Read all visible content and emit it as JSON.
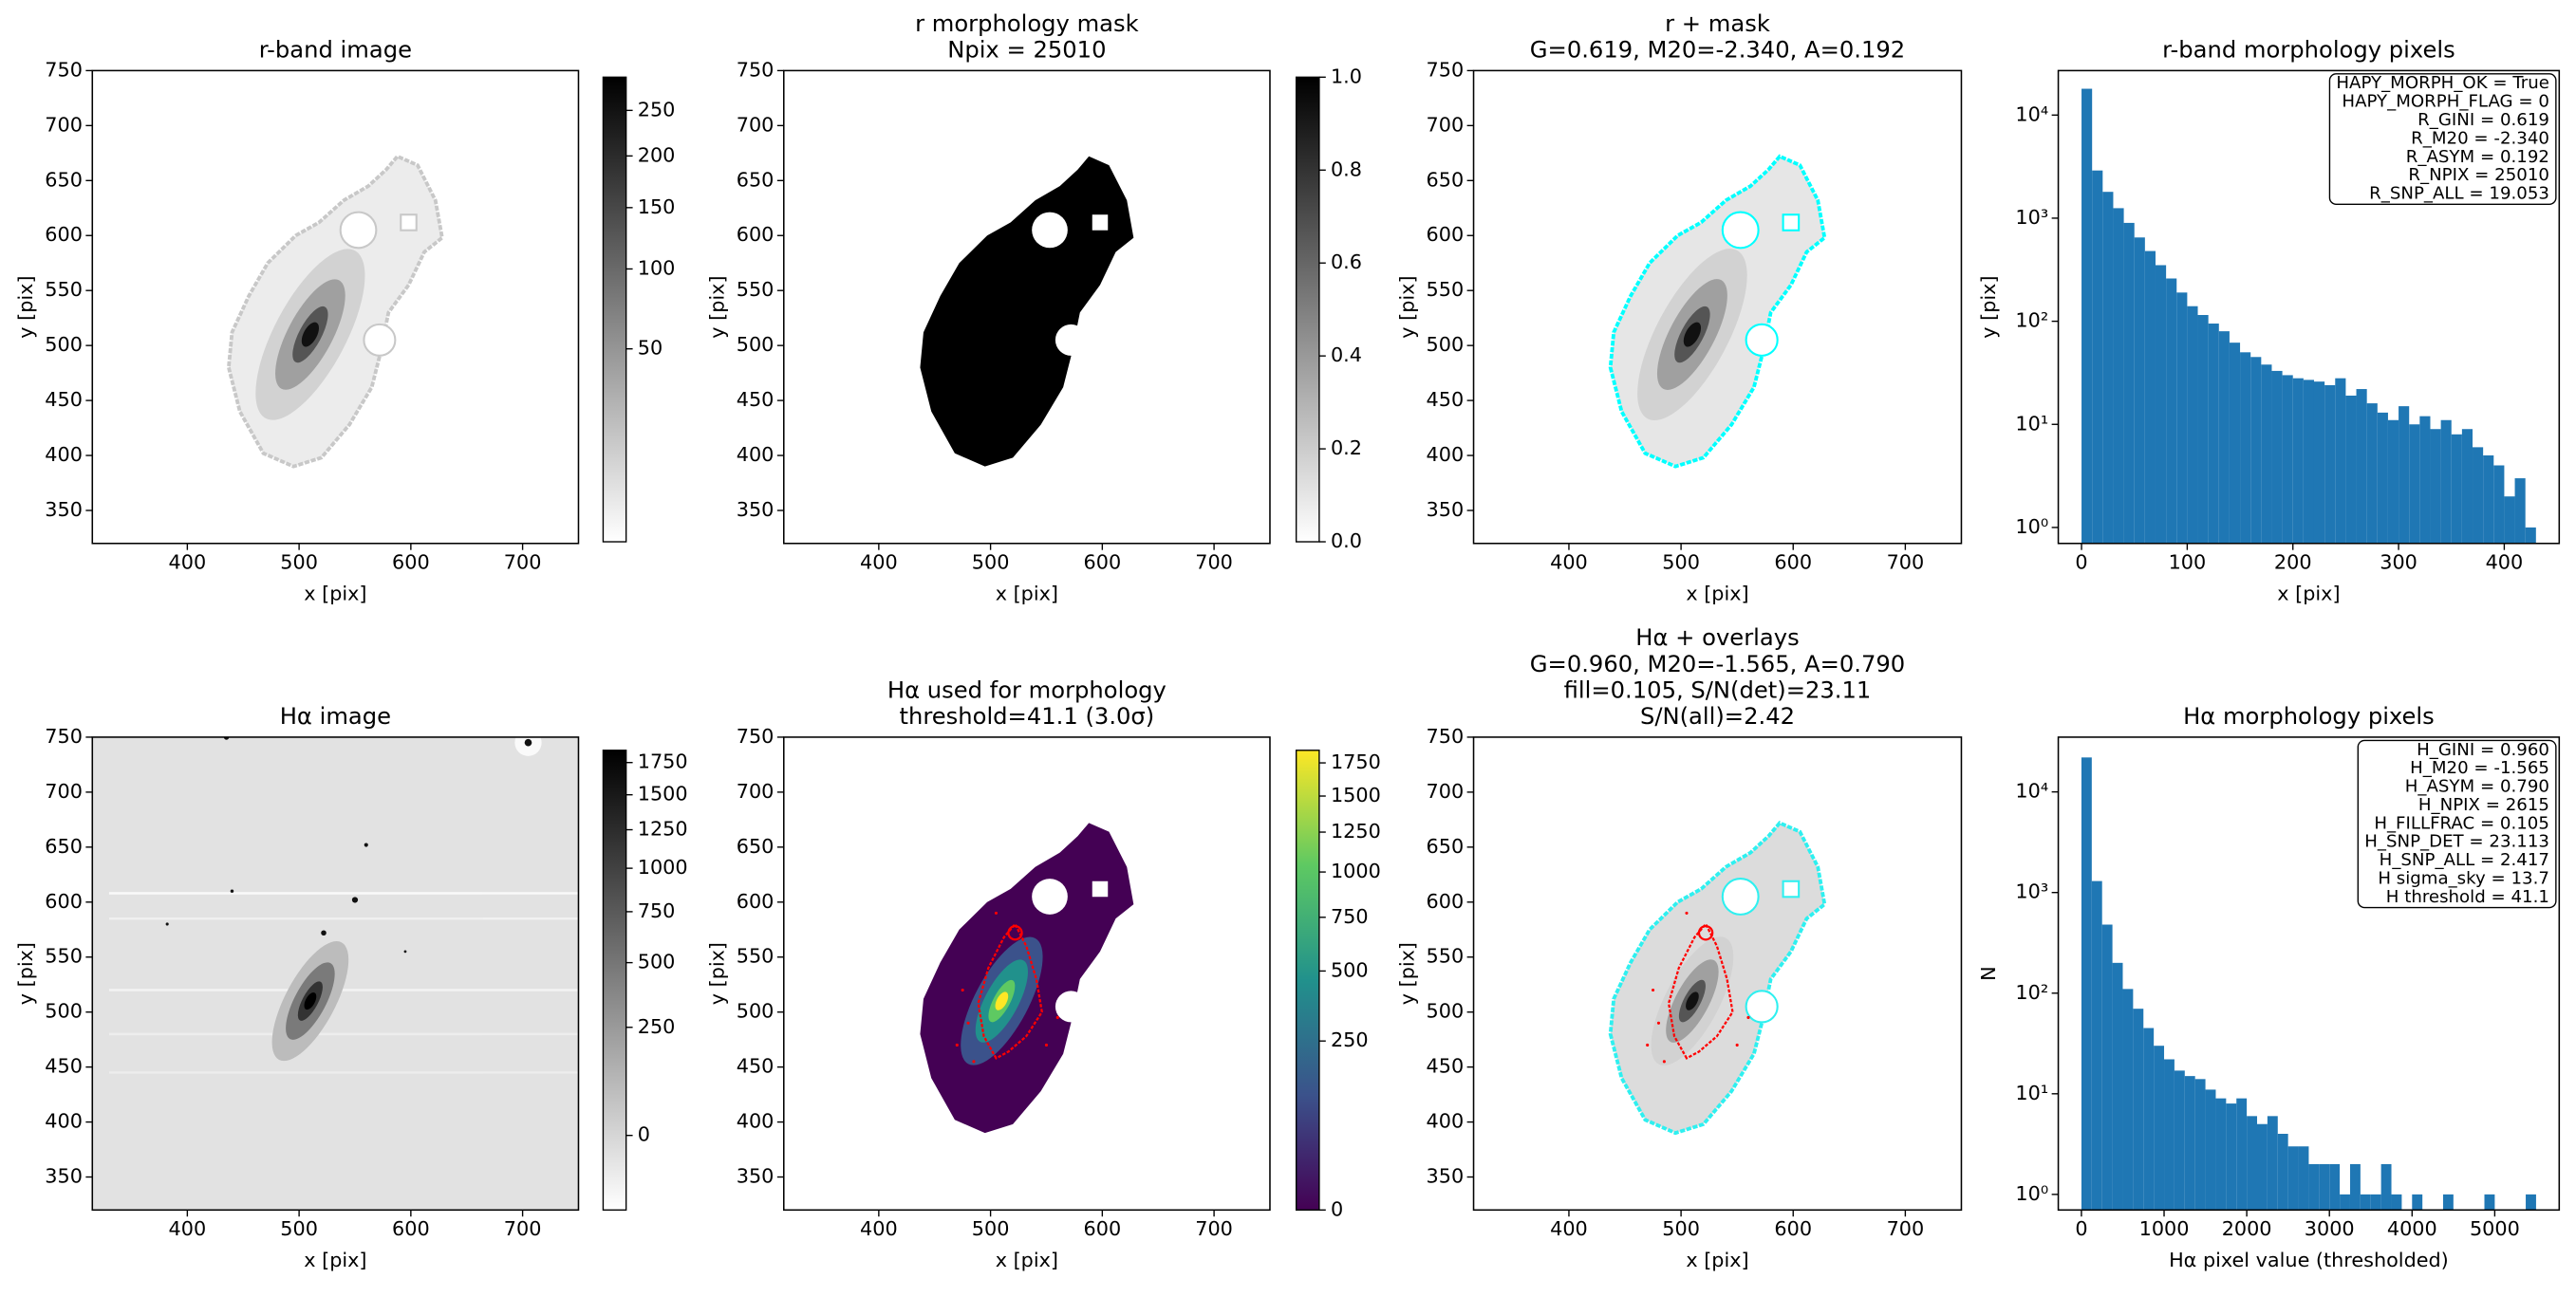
{
  "chart_data": [
    {
      "type": "image",
      "title": [
        "r-band image"
      ],
      "xlabel": "x [pix]",
      "ylabel": "y [pix]",
      "xlim": [
        315,
        750
      ],
      "ylim": [
        320,
        750
      ],
      "xticks": [
        400,
        500,
        600,
        700
      ],
      "yticks": [
        350,
        400,
        450,
        500,
        550,
        600,
        650,
        700,
        750
      ],
      "colorbar": {
        "lim": [
          0,
          290
        ],
        "ticks": [
          50,
          100,
          150,
          200,
          250
        ],
        "stretch": "sqrt",
        "cmap": "gray_r"
      }
    },
    {
      "type": "image",
      "title": [
        "r morphology mask",
        "Npix = 25010"
      ],
      "xlabel": "x [pix]",
      "ylabel": "y [pix]",
      "xlim": [
        315,
        750
      ],
      "ylim": [
        320,
        750
      ],
      "xticks": [
        400,
        500,
        600,
        700
      ],
      "yticks": [
        350,
        400,
        450,
        500,
        550,
        600,
        650,
        700,
        750
      ],
      "colorbar": {
        "lim": [
          0,
          1
        ],
        "ticks": [
          {
            "value": 0,
            "label": "0.0"
          },
          0.2,
          0.4,
          0.6,
          0.8,
          {
            "value": 1,
            "label": "1.0"
          }
        ],
        "stretch": "linear",
        "cmap": "gray_r"
      }
    },
    {
      "type": "image",
      "title": [
        "r + mask",
        "G=0.619, M20=-2.340, A=0.192"
      ],
      "xlabel": "x [pix]",
      "ylabel": "y [pix]",
      "xlim": [
        315,
        750
      ],
      "ylim": [
        320,
        750
      ],
      "xticks": [
        400,
        500,
        600,
        700
      ],
      "yticks": [
        350,
        400,
        450,
        500,
        550,
        600,
        650,
        700,
        750
      ]
    },
    {
      "type": "histogram",
      "title": [
        "r-band morphology pixels"
      ],
      "xlabel": "x [pix]",
      "ylabel": "y [pix]",
      "color": "#1f77b4",
      "ylog": true,
      "bins": [
        0,
        10,
        20,
        30,
        40,
        50,
        60,
        70,
        80,
        90,
        100,
        110,
        120,
        130,
        140,
        150,
        160,
        170,
        180,
        190,
        200,
        210,
        220,
        230,
        240,
        250,
        260,
        270,
        280,
        290,
        300,
        310,
        320,
        330,
        340,
        350,
        360,
        370,
        380,
        390,
        400,
        410,
        420,
        430
      ],
      "values": [
        18000,
        2900,
        1800,
        1250,
        900,
        650,
        480,
        350,
        260,
        190,
        140,
        115,
        95,
        80,
        62,
        50,
        45,
        38,
        33,
        30,
        28,
        27,
        26,
        24,
        28,
        19,
        22,
        16,
        13,
        11,
        15,
        10,
        12,
        9,
        11,
        8,
        9,
        6,
        5,
        4,
        2,
        3,
        1
      ],
      "xlim": [
        -22,
        452
      ],
      "ylim": [
        0.7,
        27000
      ],
      "xticks": [
        0,
        100,
        200,
        300,
        400
      ],
      "yticks": [
        {
          "value": 1,
          "label": "10⁰"
        },
        {
          "value": 10,
          "label": "10¹"
        },
        {
          "value": 100,
          "label": "10²"
        },
        {
          "value": 1000,
          "label": "10³"
        },
        {
          "value": 10000,
          "label": "10⁴"
        }
      ],
      "annotation": [
        "HAPY_MORPH_OK = True",
        "HAPY_MORPH_FLAG = 0",
        "R_GINI = 0.619",
        "R_M20 = -2.340",
        "R_ASYM = 0.192",
        "R_NPIX = 25010",
        "R_SNP_ALL = 19.053"
      ]
    },
    {
      "type": "image",
      "title": [
        "Hα image"
      ],
      "xlabel": "x [pix]",
      "ylabel": "y [pix]",
      "xlim": [
        315,
        750
      ],
      "ylim": [
        320,
        750
      ],
      "xticks": [
        400,
        500,
        600,
        700
      ],
      "yticks": [
        350,
        400,
        450,
        500,
        550,
        600,
        650,
        700,
        750
      ],
      "colorbar": {
        "lim": [
          -50,
          1850
        ],
        "ticks": [
          0,
          250,
          500,
          750,
          1000,
          1250,
          1500,
          1750
        ],
        "stretch": "sqrt",
        "cmap": "gray_r"
      }
    },
    {
      "type": "image",
      "title": [
        "Hα used for morphology",
        "threshold=41.1 (3.0σ)"
      ],
      "xlabel": "x [pix]",
      "ylabel": "y [pix]",
      "xlim": [
        315,
        750
      ],
      "ylim": [
        320,
        750
      ],
      "xticks": [
        400,
        500,
        600,
        700
      ],
      "yticks": [
        350,
        400,
        450,
        500,
        550,
        600,
        650,
        700,
        750
      ],
      "colorbar": {
        "lim": [
          0,
          1850
        ],
        "ticks": [
          0,
          250,
          500,
          750,
          1000,
          1250,
          1500,
          1750
        ],
        "stretch": "sqrt",
        "cmap": "viridis"
      }
    },
    {
      "type": "image",
      "title": [
        "Hα + overlays",
        "G=0.960, M20=-1.565, A=0.790",
        "fill=0.105, S/N(det)=23.11",
        "S/N(all)=2.42"
      ],
      "xlabel": "x [pix]",
      "ylabel": "y [pix]",
      "xlim": [
        315,
        750
      ],
      "ylim": [
        320,
        750
      ],
      "xticks": [
        400,
        500,
        600,
        700
      ],
      "yticks": [
        350,
        400,
        450,
        500,
        550,
        600,
        650,
        700,
        750
      ]
    },
    {
      "type": "histogram",
      "title": [
        "Hα morphology pixels"
      ],
      "xlabel": "Hα pixel value (thresholded)",
      "ylabel": "N",
      "color": "#1f77b4",
      "ylog": true,
      "bins": [
        0,
        125,
        250,
        375,
        500,
        625,
        750,
        875,
        1000,
        1125,
        1250,
        1375,
        1500,
        1625,
        1750,
        1875,
        2000,
        2125,
        2250,
        2375,
        2500,
        2625,
        2750,
        2875,
        3000,
        3125,
        3250,
        3375,
        3500,
        3625,
        3750,
        3875,
        4000,
        4125,
        4250,
        4375,
        4500,
        4625,
        4750,
        4875,
        5000,
        5125,
        5250,
        5375,
        5500
      ],
      "values": [
        22000,
        1300,
        480,
        200,
        110,
        70,
        45,
        30,
        22,
        17,
        15,
        14,
        11,
        9,
        8,
        9,
        6,
        5,
        6,
        4,
        3,
        3,
        2,
        2,
        2,
        1,
        2,
        1,
        1,
        2,
        1,
        0,
        1,
        0,
        0,
        1,
        0,
        0,
        0,
        1,
        0,
        0,
        0,
        1
      ],
      "xlim": [
        -280,
        5780
      ],
      "ylim": [
        0.7,
        35000
      ],
      "xticks": [
        0,
        1000,
        2000,
        3000,
        4000,
        5000
      ],
      "yticks": [
        {
          "value": 1,
          "label": "10⁰"
        },
        {
          "value": 10,
          "label": "10¹"
        },
        {
          "value": 100,
          "label": "10²"
        },
        {
          "value": 1000,
          "label": "10³"
        },
        {
          "value": 10000,
          "label": "10⁴"
        }
      ],
      "annotation": [
        "H_GINI = 0.960",
        "H_M20 = -1.565",
        "H_ASYM = 0.790",
        "H_NPIX = 2615",
        "H_FILLFRAC = 0.105",
        "H_SNP_DET = 23.113",
        "H_SNP_ALL = 2.417",
        "H sigma_sky = 13.7",
        "H threshold = 41.1"
      ]
    }
  ]
}
